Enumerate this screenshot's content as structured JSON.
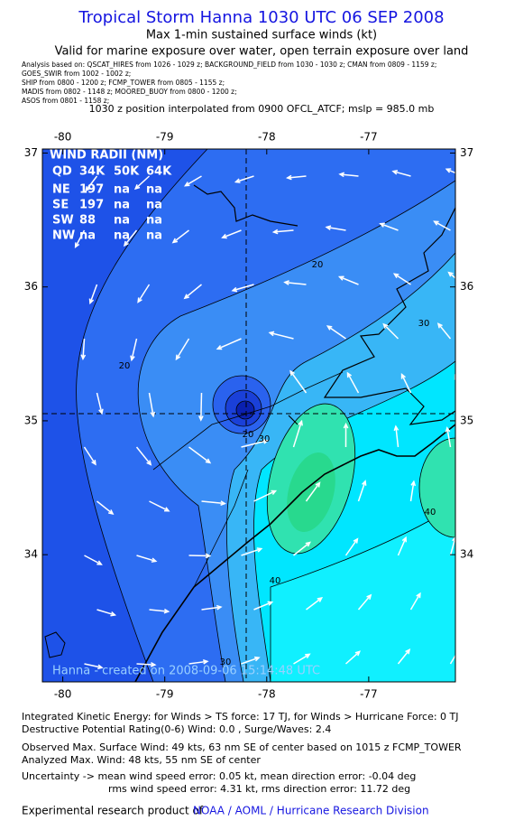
{
  "header": {
    "title": "Tropical Storm Hanna 1030 UTC 06 SEP 2008",
    "subtitle": "Max 1-min sustained surface winds (kt)",
    "validity": "Valid for marine exposure over water, open terrain exposure over land",
    "analysis": [
      "Analysis based on:  QSCAT_HIRES from 1026 - 1029 z;  BACKGROUND_FIELD from 1030 - 1030 z;  CMAN from 0809 - 1159 z;",
      "GOES_SWIR from 1002 - 1002 z;",
      "SHIP from 0800 - 1200 z;  FCMP_TOWER from 0805 - 1155 z;",
      "MADIS from 0802 - 1148 z;  MOORED_BUOY from 0800 - 1200 z;",
      "ASOS from 0801 - 1158 z;"
    ],
    "position": "1030 z position interpolated from 0900 OFCL_ATCF; mslp = 985.0 mb"
  },
  "map": {
    "xlim": [
      -80.2,
      -76.15
    ],
    "ylim": [
      33.05,
      37.03
    ],
    "xticks": [
      -80,
      -79,
      -78,
      -77
    ],
    "yticks": [
      34,
      35,
      36,
      37
    ],
    "wind_radii": {
      "title": "WIND RADII (NM)",
      "header": [
        "QD",
        "34K",
        "50K",
        "64K"
      ],
      "rows": [
        [
          "NE",
          "197",
          "na",
          "na"
        ],
        [
          "SE",
          "197",
          "na",
          "na"
        ],
        [
          "SW",
          "88",
          "na",
          "na"
        ],
        [
          "NW",
          "na",
          "na",
          "na"
        ]
      ]
    },
    "contour_labels": [
      "20",
      "20",
      "20",
      "30",
      "30",
      "30",
      "40",
      "40"
    ],
    "credit": "Hanna - created on 2008-09-06 15:14:48 UTC"
  },
  "footer": {
    "lines": [
      "Integrated Kinetic Energy:  for Winds > TS force: 17 TJ,  for Winds > Hurricane Force: 0 TJ",
      "Destructive Potential Rating(0-6)   Wind: 0.0 , Surge/Waves: 2.4",
      "Observed Max. Surface Wind: 49 kts, 63 nm SE of center based on 1015 z FCMP_TOWER",
      "Analyzed Max. Wind: 48 kts, 55 nm SE of center",
      "Uncertainty -> mean wind speed error: 0.05 kt,   mean direction error:  -0.04 deg",
      "rms wind speed error: 4.31 kt,   rms direction error: 11.72 deg"
    ],
    "product_prefix": "Experimental research product of",
    "product_org": "NOAA / AOML / Hurricane Research Division"
  }
}
